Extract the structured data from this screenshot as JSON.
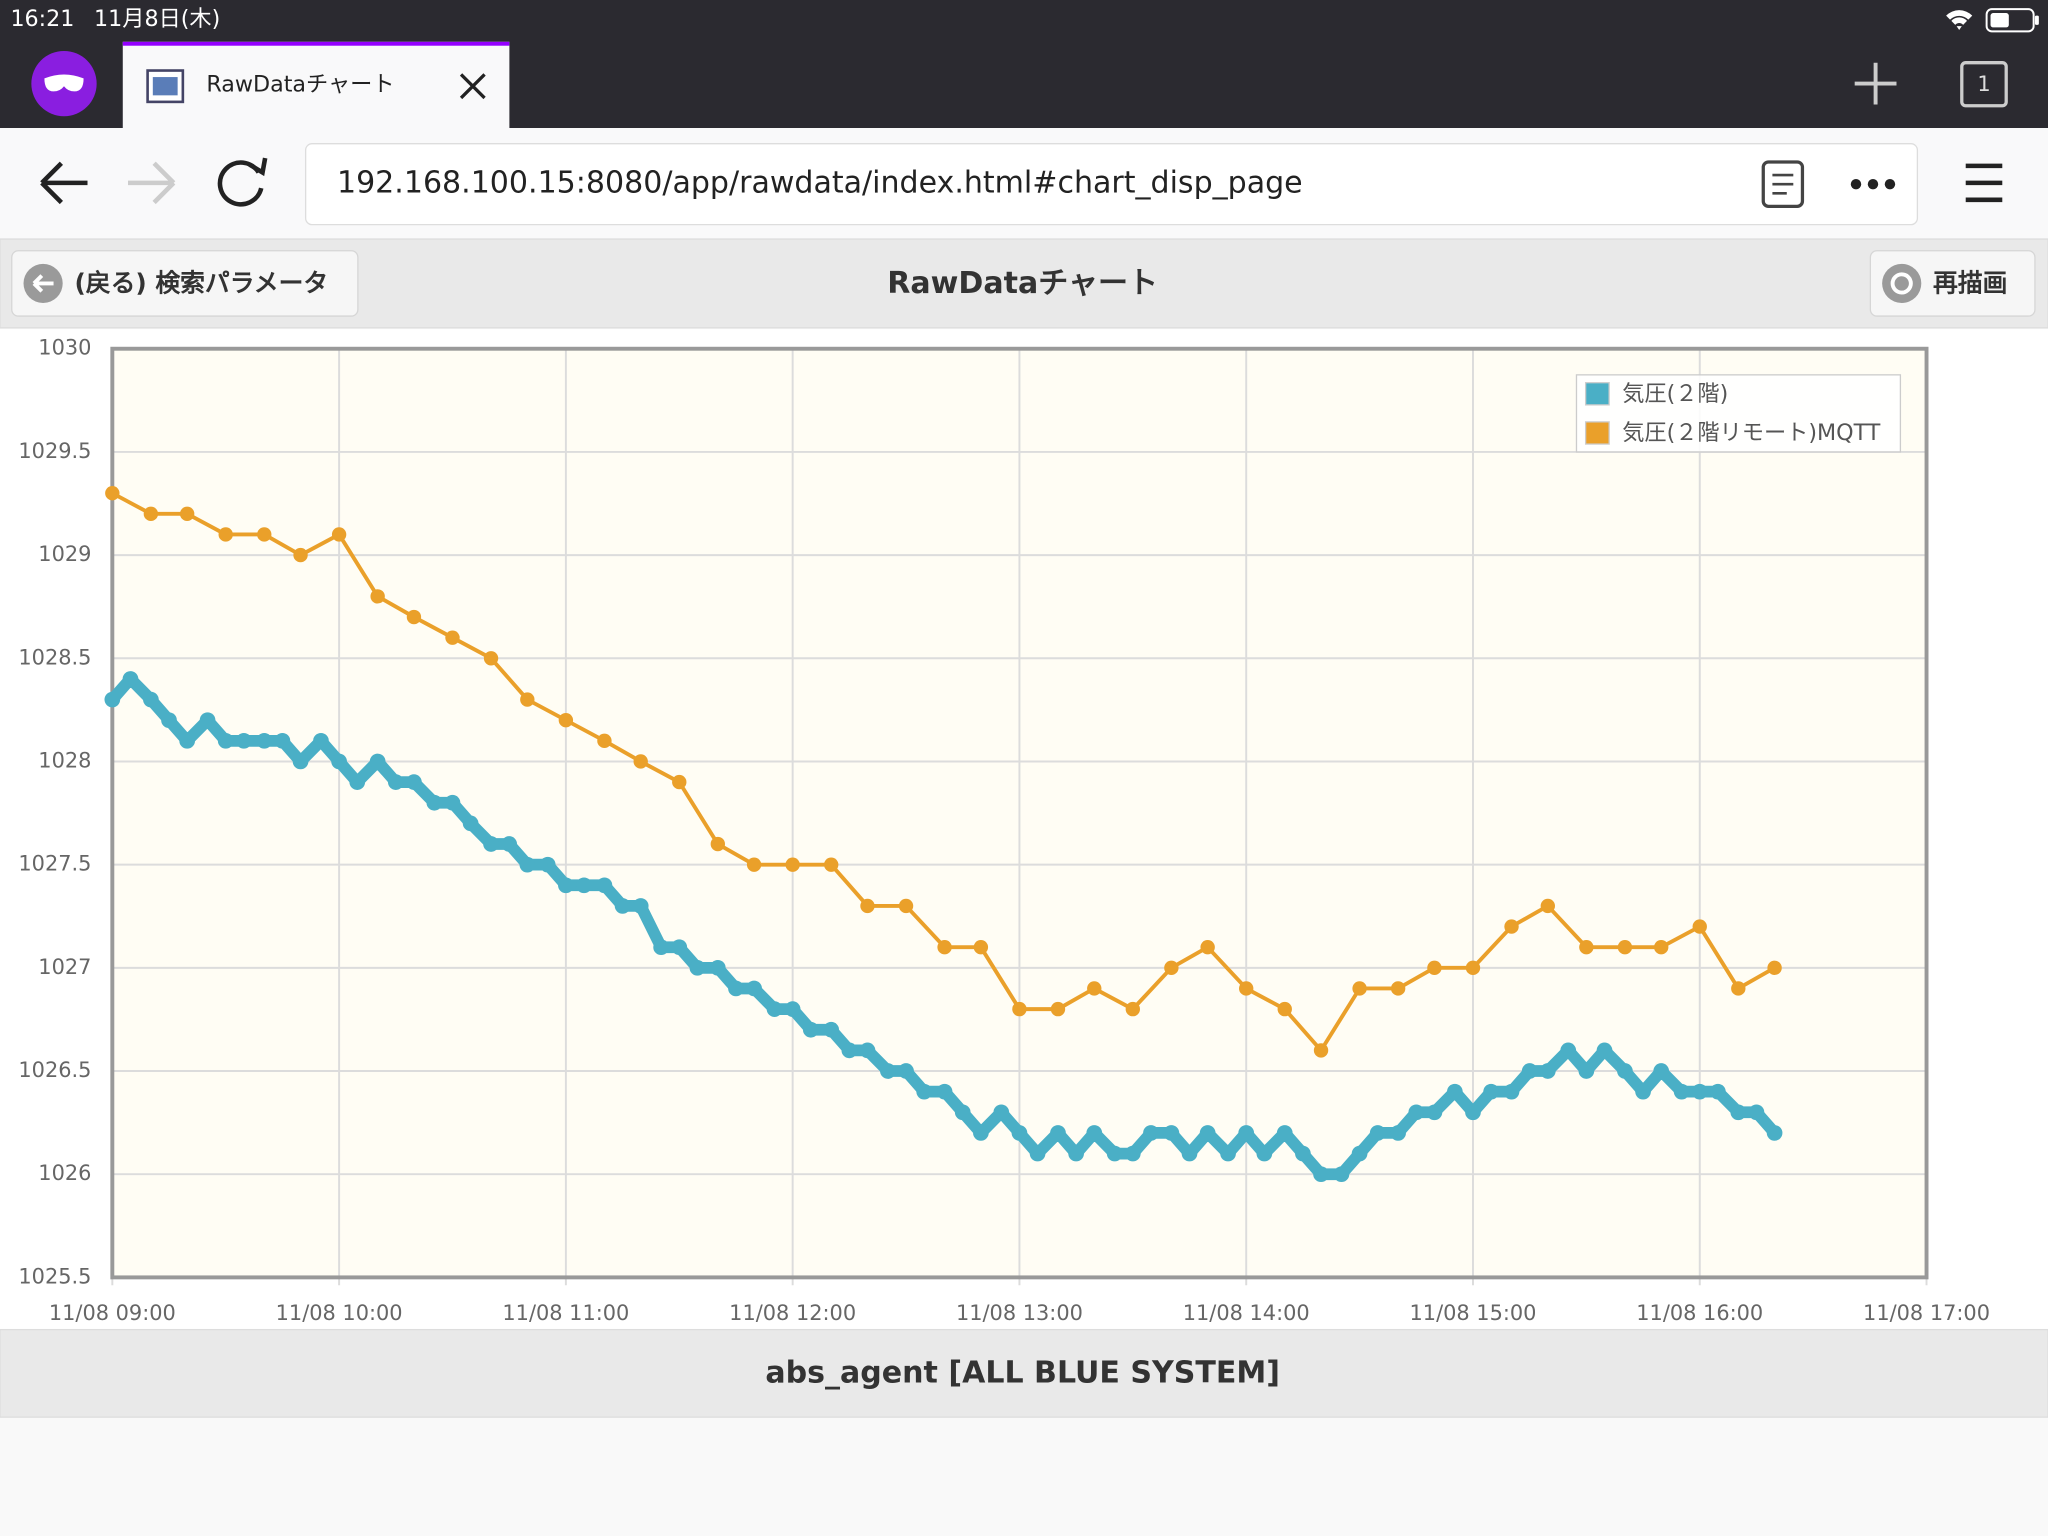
{
  "status_bar": {
    "time": "16:21",
    "date": "11月8日(木)"
  },
  "browser": {
    "tab_title": "RawDataチャート",
    "url": "192.168.100.15:8080/app/rawdata/index.html#chart_disp_page",
    "tab_count": "1"
  },
  "header": {
    "back_button": "(戻る) 検索パラメータ",
    "title": "RawDataチャート",
    "redraw_button": "再描画"
  },
  "chart_data": {
    "type": "line",
    "legend": "top-right",
    "grid": true,
    "background": "#fffdf4",
    "xlim": [
      9,
      17
    ],
    "xticks": [
      {
        "value": 9,
        "label": "11/08 09:00"
      },
      {
        "value": 10,
        "label": "11/08 10:00"
      },
      {
        "value": 11,
        "label": "11/08 11:00"
      },
      {
        "value": 12,
        "label": "11/08 12:00"
      },
      {
        "value": 13,
        "label": "11/08 13:00"
      },
      {
        "value": 14,
        "label": "11/08 14:00"
      },
      {
        "value": 15,
        "label": "11/08 15:00"
      },
      {
        "value": 16,
        "label": "11/08 16:00"
      },
      {
        "value": 17,
        "label": "11/08 17:00"
      }
    ],
    "ylim": [
      1025.5,
      1030
    ],
    "yticks": [
      1025.5,
      1026,
      1026.5,
      1027,
      1027.5,
      1028,
      1028.5,
      1029,
      1029.5,
      1030
    ],
    "series": [
      {
        "name": "気圧(２階)",
        "color": "#4aafc6",
        "x": [
          9,
          9.08,
          9.17,
          9.25,
          9.33,
          9.42,
          9.5,
          9.58,
          9.67,
          9.75,
          9.83,
          9.92,
          10,
          10.08,
          10.17,
          10.25,
          10.33,
          10.42,
          10.5,
          10.58,
          10.67,
          10.75,
          10.83,
          10.92,
          11,
          11.08,
          11.17,
          11.25,
          11.33,
          11.42,
          11.5,
          11.58,
          11.67,
          11.75,
          11.83,
          11.92,
          12,
          12.08,
          12.17,
          12.25,
          12.33,
          12.42,
          12.5,
          12.58,
          12.67,
          12.75,
          12.83,
          12.92,
          13,
          13.08,
          13.17,
          13.25,
          13.33,
          13.42,
          13.5,
          13.58,
          13.67,
          13.75,
          13.83,
          13.92,
          14,
          14.08,
          14.17,
          14.25,
          14.33,
          14.42,
          14.5,
          14.58,
          14.67,
          14.75,
          14.83,
          14.92,
          15,
          15.08,
          15.17,
          15.25,
          15.33,
          15.42,
          15.5,
          15.58,
          15.67,
          15.75,
          15.83,
          15.92,
          16,
          16.08,
          16.17,
          16.25,
          16.33
        ],
        "values": [
          1028.3,
          1028.4,
          1028.3,
          1028.2,
          1028.1,
          1028.2,
          1028.1,
          1028.1,
          1028.1,
          1028.1,
          1028.0,
          1028.1,
          1028.0,
          1027.9,
          1028.0,
          1027.9,
          1027.9,
          1027.8,
          1027.8,
          1027.7,
          1027.6,
          1027.6,
          1027.5,
          1027.5,
          1027.4,
          1027.4,
          1027.4,
          1027.3,
          1027.3,
          1027.1,
          1027.1,
          1027.0,
          1027.0,
          1026.9,
          1026.9,
          1026.8,
          1026.8,
          1026.7,
          1026.7,
          1026.6,
          1026.6,
          1026.5,
          1026.5,
          1026.4,
          1026.4,
          1026.3,
          1026.2,
          1026.3,
          1026.2,
          1026.1,
          1026.2,
          1026.1,
          1026.2,
          1026.1,
          1026.1,
          1026.2,
          1026.2,
          1026.1,
          1026.2,
          1026.1,
          1026.2,
          1026.1,
          1026.2,
          1026.1,
          1026.0,
          1026.0,
          1026.1,
          1026.2,
          1026.2,
          1026.3,
          1026.3,
          1026.4,
          1026.3,
          1026.4,
          1026.4,
          1026.5,
          1026.5,
          1026.6,
          1026.5,
          1026.6,
          1026.5,
          1026.4,
          1026.5,
          1026.4,
          1026.4,
          1026.4,
          1026.3,
          1026.3,
          1026.2
        ]
      },
      {
        "name": "気圧(２階リモート)MQTT",
        "color": "#eaa02a",
        "x": [
          9,
          9.17,
          9.33,
          9.5,
          9.67,
          9.83,
          10,
          10.17,
          10.33,
          10.5,
          10.67,
          10.83,
          11,
          11.17,
          11.33,
          11.5,
          11.67,
          11.83,
          12,
          12.17,
          12.33,
          12.5,
          12.67,
          12.83,
          13,
          13.17,
          13.33,
          13.5,
          13.67,
          13.83,
          14,
          14.17,
          14.33,
          14.5,
          14.67,
          14.83,
          15,
          15.17,
          15.33,
          15.5,
          15.67,
          15.83,
          16,
          16.17,
          16.33
        ],
        "values": [
          1029.3,
          1029.2,
          1029.2,
          1029.1,
          1029.1,
          1029.0,
          1029.1,
          1028.8,
          1028.7,
          1028.6,
          1028.5,
          1028.3,
          1028.2,
          1028.1,
          1028.0,
          1027.9,
          1027.6,
          1027.5,
          1027.5,
          1027.5,
          1027.3,
          1027.3,
          1027.1,
          1027.1,
          1026.8,
          1026.8,
          1026.9,
          1026.8,
          1027.0,
          1027.1,
          1026.9,
          1026.8,
          1026.6,
          1026.9,
          1026.9,
          1027.0,
          1027.0,
          1027.2,
          1027.3,
          1027.1,
          1027.1,
          1027.1,
          1027.2,
          1026.9,
          1027.0
        ]
      }
    ]
  },
  "footer": {
    "text": "abs_agent [ALL BLUE SYSTEM]"
  }
}
